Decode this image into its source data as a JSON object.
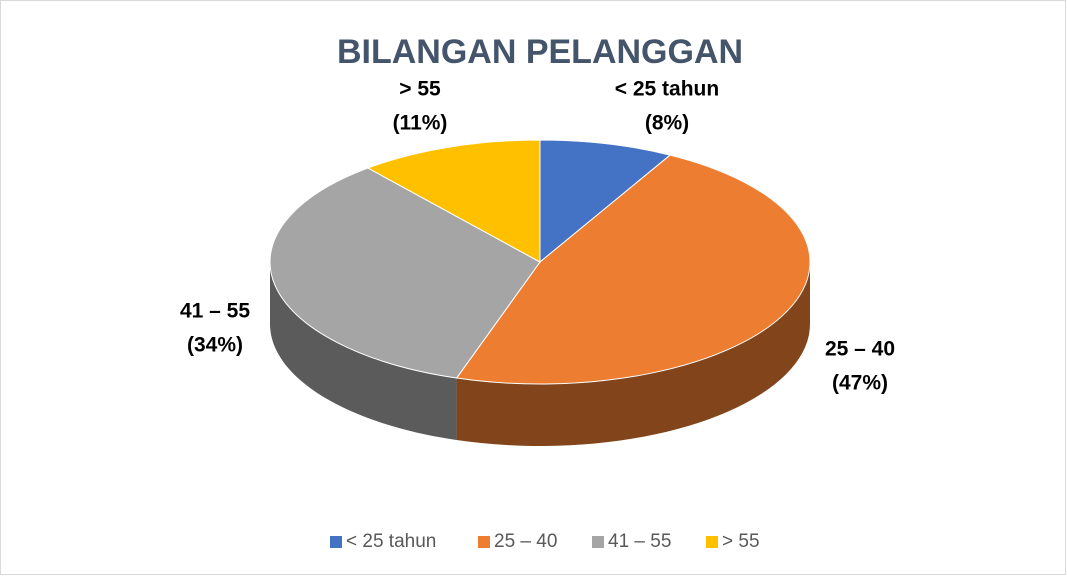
{
  "chart_data": {
    "type": "pie3d",
    "title": "BILANGAN PELANGGAN",
    "categories": [
      "< 25 tahun",
      "25 – 40",
      "41 – 55",
      "> 55"
    ],
    "values": [
      8,
      47,
      34,
      11
    ],
    "value_labels": [
      "(8%)",
      "(47%)",
      "(34%)",
      "(11%)"
    ],
    "colors": [
      "#4472c4",
      "#ed7d31",
      "#a5a5a5",
      "#ffc000"
    ],
    "legend": "bottom"
  }
}
